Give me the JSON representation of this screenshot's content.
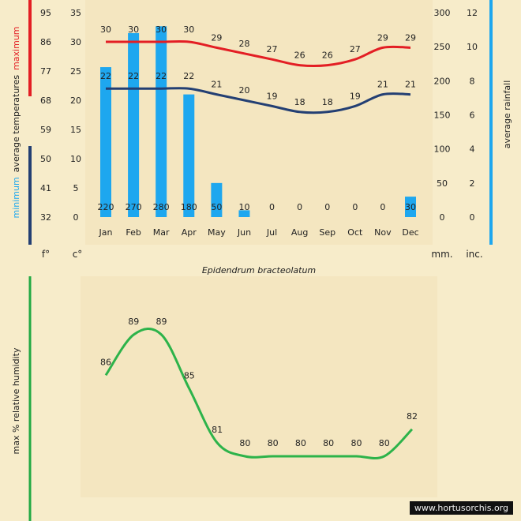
{
  "chart_data": [
    {
      "type": "climate",
      "title": "Epidendrum bracteolatum",
      "categories": [
        "Jan",
        "Feb",
        "Mar",
        "Apr",
        "May",
        "Jun",
        "Jul",
        "Aug",
        "Sep",
        "Oct",
        "Nov",
        "Dec"
      ],
      "series": [
        {
          "name": "maximum",
          "type": "line",
          "axis": "celsius",
          "values": [
            30,
            30,
            30,
            30,
            29,
            28,
            27,
            26,
            26,
            27,
            29,
            29
          ],
          "color": "#e31e24"
        },
        {
          "name": "minimum",
          "type": "line",
          "axis": "celsius",
          "values": [
            22,
            22,
            22,
            22,
            21,
            20,
            19,
            18,
            18,
            19,
            21,
            21
          ],
          "color": "#233f73"
        },
        {
          "name": "average rainfall",
          "type": "bar",
          "axis": "mm",
          "values": [
            220,
            270,
            280,
            180,
            50,
            10,
            0,
            0,
            0,
            0,
            0,
            30
          ],
          "color": "#1ea7ef"
        }
      ],
      "left_label": {
        "prefix": "minimum",
        "middle": "average  temperatures",
        "suffix": "maximum"
      },
      "right_label": "average rainfall",
      "celsius_ticks": [
        35,
        30,
        25,
        20,
        15,
        10,
        5,
        0
      ],
      "fahrenheit_ticks": [
        95,
        86,
        77,
        68,
        59,
        50,
        41,
        32
      ],
      "mm_ticks": [
        300,
        250,
        200,
        150,
        100,
        50,
        0
      ],
      "inch_ticks": [
        12,
        10,
        8,
        6,
        4,
        2,
        0
      ],
      "ylim_celsius": [
        0,
        35
      ],
      "ylim_mm": [
        0,
        300
      ],
      "unit_f": "f°",
      "unit_c": "c°",
      "unit_mm": "mm.",
      "unit_in": "inc.",
      "grid": false,
      "colors": {
        "max_bar": "#e31e24",
        "min_bar": "#233f73",
        "rain_bar": "#1ea7ef",
        "humidity_bar": "#22a943"
      }
    },
    {
      "type": "line",
      "ylabel": "max %  relative humidity",
      "categories": [
        "Jan",
        "Feb",
        "Mar",
        "Apr",
        "May",
        "Jun",
        "Jul",
        "Aug",
        "Sep",
        "Oct",
        "Nov",
        "Dec"
      ],
      "values": [
        86,
        89,
        89,
        85,
        81,
        80,
        80,
        80,
        80,
        80,
        80,
        82
      ],
      "ylim": [
        78,
        90
      ],
      "color": "#2db34a",
      "grid": false
    }
  ],
  "credit": "www.hortusorchis.org"
}
